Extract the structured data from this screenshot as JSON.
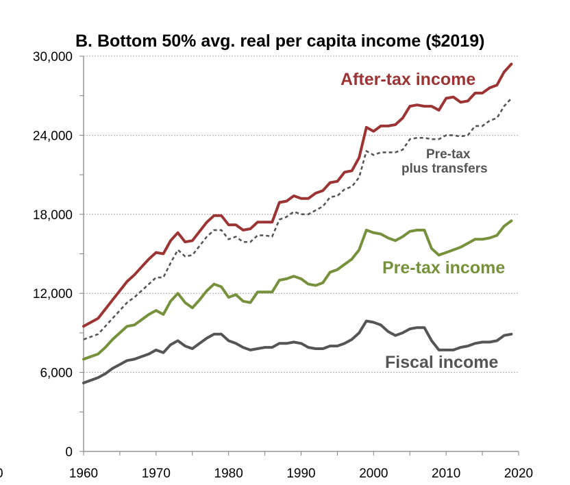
{
  "chart_data": {
    "type": "line",
    "title": "B. Bottom 50% avg. real per capita income ($2019)",
    "xlabel": "",
    "ylabel": "",
    "xlim": [
      1960,
      2020
    ],
    "ylim": [
      0,
      30000
    ],
    "x_ticks": [
      1960,
      1970,
      1980,
      1990,
      2000,
      2010,
      2020
    ],
    "y_ticks": [
      0,
      6000,
      12000,
      18000,
      24000,
      30000
    ],
    "x_tick_labels": [
      "1960",
      "1970",
      "1980",
      "1990",
      "2000",
      "2010",
      "2020"
    ],
    "y_tick_labels": [
      "0",
      "6,000",
      "12,000",
      "18,000",
      "24,000",
      "30,000"
    ],
    "edge_fragment": "0",
    "grid": true,
    "x": [
      1960,
      1961,
      1962,
      1963,
      1964,
      1965,
      1966,
      1967,
      1968,
      1969,
      1970,
      1971,
      1972,
      1973,
      1974,
      1975,
      1976,
      1977,
      1978,
      1979,
      1980,
      1981,
      1982,
      1983,
      1984,
      1985,
      1986,
      1987,
      1988,
      1989,
      1990,
      1991,
      1992,
      1993,
      1994,
      1995,
      1996,
      1997,
      1998,
      1999,
      2000,
      2001,
      2002,
      2003,
      2004,
      2005,
      2006,
      2007,
      2008,
      2009,
      2010,
      2011,
      2012,
      2013,
      2014,
      2015,
      2016,
      2017,
      2018,
      2019
    ],
    "series": [
      {
        "name": "After-tax income",
        "label": "After-tax income",
        "color": "#9c3434",
        "style": "solid",
        "values": [
          9500,
          9800,
          10100,
          10800,
          11500,
          12200,
          12900,
          13400,
          14000,
          14600,
          15100,
          15000,
          16000,
          16600,
          15900,
          16000,
          16700,
          17400,
          17900,
          17900,
          17200,
          17200,
          16800,
          16900,
          17400,
          17400,
          17400,
          18900,
          19000,
          19400,
          19200,
          19200,
          19600,
          19800,
          20400,
          20500,
          21200,
          21300,
          22300,
          24600,
          24300,
          24700,
          24700,
          24800,
          25300,
          26200,
          26300,
          26200,
          26200,
          25900,
          26800,
          26900,
          26500,
          26600,
          27200,
          27200,
          27600,
          27800,
          28800,
          29400
        ]
      },
      {
        "name": "Pre-tax plus transfers",
        "label_line1": "Pre-tax",
        "label_line2": "plus transfers",
        "color": "#555555",
        "style": "dashed",
        "values": [
          8500,
          8700,
          8900,
          9500,
          10100,
          10700,
          11300,
          11700,
          12200,
          12700,
          13200,
          13200,
          14300,
          15300,
          14800,
          14900,
          15600,
          16300,
          16800,
          16800,
          16100,
          16300,
          15900,
          15900,
          16400,
          16400,
          16300,
          17600,
          17800,
          18200,
          18000,
          18000,
          18300,
          18600,
          19300,
          19400,
          19900,
          20100,
          20800,
          22800,
          22500,
          22700,
          22700,
          22700,
          22900,
          23700,
          23800,
          23800,
          23700,
          23700,
          24000,
          24000,
          23900,
          24000,
          24700,
          24700,
          25100,
          25300,
          26200,
          26800
        ]
      },
      {
        "name": "Pre-tax income",
        "label": "Pre-tax income",
        "color": "#76913c",
        "style": "solid",
        "values": [
          7000,
          7200,
          7400,
          7900,
          8500,
          9000,
          9500,
          9600,
          10000,
          10400,
          10700,
          10400,
          11400,
          12000,
          11300,
          10900,
          11500,
          12200,
          12700,
          12500,
          11700,
          11900,
          11400,
          11300,
          12100,
          12100,
          12100,
          13000,
          13100,
          13300,
          13100,
          12700,
          12600,
          12800,
          13600,
          13800,
          14200,
          14600,
          15300,
          16800,
          16600,
          16500,
          16200,
          16000,
          16300,
          16700,
          16800,
          16800,
          15400,
          14900,
          15100,
          15300,
          15500,
          15800,
          16100,
          16100,
          16200,
          16400,
          17100,
          17500
        ]
      },
      {
        "name": "Fiscal income",
        "label": "Fiscal income",
        "color": "#555555",
        "style": "solid",
        "values": [
          5200,
          5400,
          5600,
          5900,
          6300,
          6600,
          6900,
          7000,
          7200,
          7400,
          7700,
          7500,
          8100,
          8400,
          8000,
          7800,
          8200,
          8600,
          8900,
          8900,
          8400,
          8200,
          7900,
          7700,
          7800,
          7900,
          7900,
          8200,
          8200,
          8300,
          8200,
          7900,
          7800,
          7800,
          8000,
          8000,
          8200,
          8500,
          9000,
          9900,
          9800,
          9600,
          9100,
          8800,
          9000,
          9300,
          9400,
          9400,
          8400,
          7700,
          7700,
          7700,
          7900,
          8000,
          8200,
          8300,
          8300,
          8400,
          8800,
          8900
        ]
      }
    ]
  }
}
